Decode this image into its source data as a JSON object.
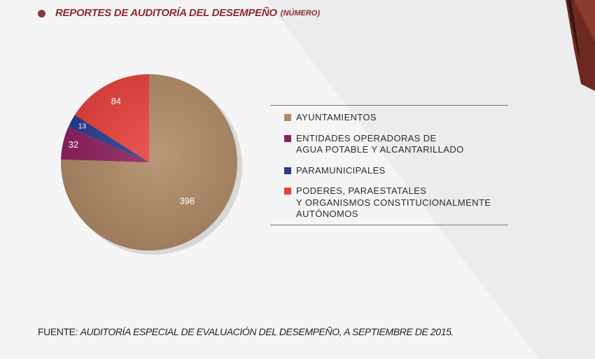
{
  "header": {
    "title": "REPORTES DE AUDITORÍA DEL DESEMPEÑO",
    "unit": "(NÚMERO)"
  },
  "chart_data": {
    "type": "pie",
    "categories": [
      "AYUNTAMIENTOS",
      "ENTIDADES OPERADORAS DE\nAGUA POTABLE Y ALCANTARILLADO",
      "PARAMUNICIPALES",
      "PODERES, PARAESTATALES\nY ORGANISMOS CONSTITUCIONALMENTE\nAUTÓNOMOS"
    ],
    "values": [
      398,
      32,
      13,
      84
    ],
    "data_labels": [
      "398",
      "32",
      "13",
      "84"
    ],
    "colors": [
      "#b08a66",
      "#8e1f5e",
      "#2a3a8f",
      "#e8403a"
    ],
    "title": "REPORTES DE AUDITORÍA DEL DESEMPEÑO",
    "legend_position": "right",
    "start": "12 o'clock, clockwise"
  },
  "footer": {
    "source_label": "FUENTE:",
    "source_text": "AUDITORÍA ESPECIAL DE EVALUACIÓN DEL DESEMPEÑO, A SEPTIEMBRE DE 2015."
  }
}
